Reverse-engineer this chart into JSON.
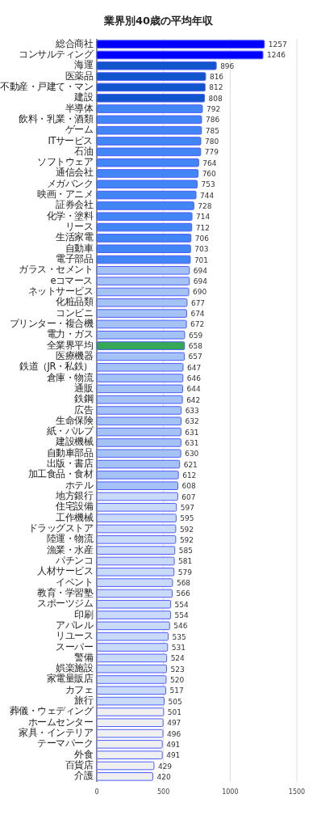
{
  "chart_data": {
    "type": "bar",
    "orientation": "horizontal",
    "title": "業界別40歳の平均年収",
    "categories": [
      "総合商社",
      "コンサルティング",
      "海運",
      "医薬品",
      "不動産・戸建て・マン",
      "建設",
      "半導体",
      "飲料・乳業・酒類",
      "ゲーム",
      "ITサービス",
      "石油",
      "ソフトウェア",
      "通信会社",
      "メガバンク",
      "映画・アニメ",
      "証券会社",
      "化学・塗料",
      "リース",
      "生活家電",
      "自動車",
      "電子部品",
      "ガラス・セメント",
      "eコマース",
      "ネットサービス",
      "化粧品類",
      "コンビニ",
      "プリンター・複合機",
      "電力・ガス",
      "全業界平均",
      "医療機器",
      "鉄道（JR・私鉄）",
      "倉庫・物流",
      "通販",
      "鉄鋼",
      "広告",
      "生命保険",
      "紙・パルプ",
      "建設機械",
      "自動車部品",
      "出版・書店",
      "加工食品・食材",
      "ホテル",
      "地方銀行",
      "住宅設備",
      "工作機械",
      "ドラッグストア",
      "陸運・物流",
      "漁業・水産",
      "パチンコ",
      "人材サービス",
      "イベント",
      "教育・学習塾",
      "スポーツジム",
      "印刷",
      "アパレル",
      "リユース",
      "スーパー",
      "警備",
      "娯楽施設",
      "家電量販店",
      "カフェ",
      "旅行",
      "葬儀・ウェディング",
      "ホームセンター",
      "家具・インテリア",
      "テーマパーク",
      "外食",
      "百貨店",
      "介護"
    ],
    "values": [
      1257,
      1246,
      896,
      816,
      812,
      808,
      792,
      786,
      785,
      780,
      779,
      764,
      760,
      753,
      744,
      728,
      714,
      712,
      706,
      703,
      701,
      694,
      694,
      690,
      677,
      674,
      672,
      659,
      658,
      657,
      647,
      646,
      644,
      642,
      633,
      632,
      631,
      631,
      630,
      621,
      612,
      608,
      607,
      597,
      595,
      592,
      592,
      585,
      581,
      579,
      568,
      566,
      554,
      554,
      546,
      535,
      531,
      524,
      523,
      520,
      517,
      505,
      501,
      497,
      496,
      491,
      491,
      429,
      420
    ],
    "colors": [
      "#0000ff",
      "#0000ff",
      "#1155cc",
      "#1155cc",
      "#1155cc",
      "#1155cc",
      "#4285f4",
      "#4285f4",
      "#4285f4",
      "#4285f4",
      "#4285f4",
      "#4285f4",
      "#4285f4",
      "#4285f4",
      "#4285f4",
      "#4285f4",
      "#4285f4",
      "#4285f4",
      "#4285f4",
      "#4285f4",
      "#4285f4",
      "#a4c2f4",
      "#a4c2f4",
      "#a4c2f4",
      "#a4c2f4",
      "#a4c2f4",
      "#a4c2f4",
      "#a4c2f4",
      "#34a853",
      "#a4c2f4",
      "#a4c2f4",
      "#a4c2f4",
      "#a4c2f4",
      "#a4c2f4",
      "#a4c2f4",
      "#a4c2f4",
      "#a4c2f4",
      "#a4c2f4",
      "#a4c2f4",
      "#a4c2f4",
      "#a4c2f4",
      "#a4c2f4",
      "#c9daf8",
      "#c9daf8",
      "#c9daf8",
      "#c9daf8",
      "#c9daf8",
      "#c9daf8",
      "#c9daf8",
      "#c9daf8",
      "#c9daf8",
      "#c9daf8",
      "#c9daf8",
      "#c9daf8",
      "#c9daf8",
      "#c9daf8",
      "#c9daf8",
      "#c9daf8",
      "#c9daf8",
      "#c9daf8",
      "#c9daf8",
      "#c9daf8",
      "#efefef",
      "#efefef",
      "#efefef",
      "#efefef",
      "#efefef",
      "#efefef",
      "#efefef"
    ],
    "data_labels": true,
    "xlim": [
      0,
      1500
    ],
    "xticks": [
      0,
      500,
      1000,
      1500
    ],
    "grid": "x"
  }
}
